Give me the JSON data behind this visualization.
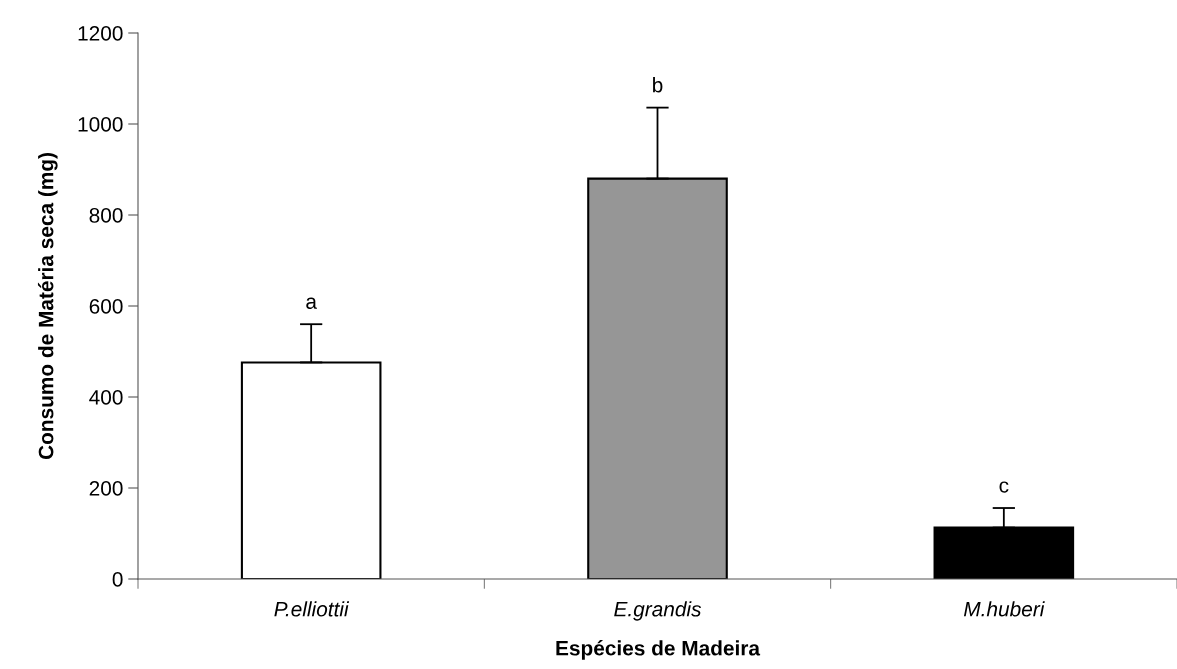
{
  "chart_data": {
    "type": "bar",
    "xlabel": "Espécies de Madeira",
    "ylabel": "Consumo de Matéria seca (mg)",
    "categories": [
      "P.elliottii",
      "E.grandis",
      "M.huberi"
    ],
    "values": [
      476,
      880,
      113
    ],
    "colors": [
      "#ffffff",
      "#969696",
      "#000000"
    ],
    "errors": [
      [
        476,
        560
      ],
      [
        880,
        1036
      ],
      [
        113,
        156
      ]
    ],
    "ylim": [
      0,
      1200
    ],
    "yticks": [
      0,
      200,
      400,
      600,
      800,
      1000,
      1200
    ],
    "annotations": [
      {
        "text": "a",
        "x": "P.elliottii",
        "y": 560
      },
      {
        "text": "b",
        "x": "E.grandis",
        "y": 1036
      },
      {
        "text": "c",
        "x": "M.huberi",
        "y": 156
      }
    ],
    "grid": false,
    "legend": false
  }
}
